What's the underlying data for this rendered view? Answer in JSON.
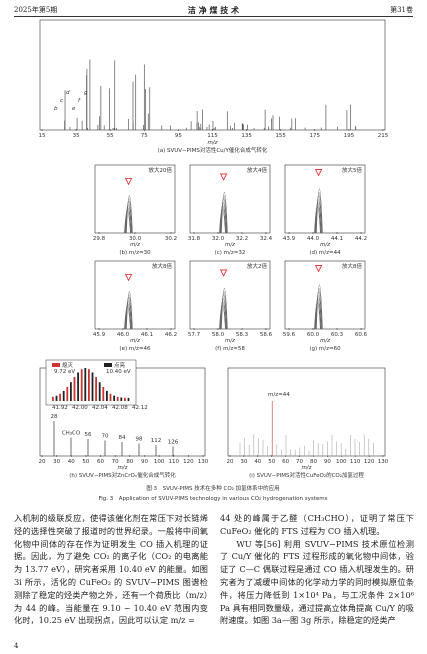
{
  "header": {
    "issue": "2025年第5期",
    "journal": "洁 净 煤 技 术",
    "volume": "第31卷"
  },
  "figure": {
    "panel_a": {
      "xticks": [
        "15",
        "35",
        "55",
        "75",
        "95",
        "115",
        "135",
        "155",
        "175",
        "195",
        "215"
      ],
      "xlabel": "m/z",
      "peak_labels": [
        "b",
        "c",
        "d",
        "e",
        "f",
        "g"
      ],
      "caption": "(a) SVUV−PIMS对活性Cu/Y催化合成气转化"
    },
    "panels": [
      {
        "zoom": "放大20倍",
        "xticks": [
          "29.8",
          "30.0",
          "30.2"
        ],
        "xlabel": "m/z",
        "caption": "(b) m/z=30"
      },
      {
        "zoom": "放大4倍",
        "xticks": [
          "31.8",
          "32.0",
          "32.2",
          "32.4"
        ],
        "xlabel": "m/z",
        "caption": "(c) m/z=32"
      },
      {
        "zoom": "放大5倍",
        "xticks": [
          "43.9",
          "44.0",
          "44.1",
          "44.2"
        ],
        "xlabel": "m/z",
        "caption": "(d) m/z=44"
      },
      {
        "zoom": "放大8倍",
        "xticks": [
          "45.9",
          "46.0",
          "46.1",
          "46.2"
        ],
        "xlabel": "m/z",
        "caption": "(e) m/z=46"
      },
      {
        "zoom": "放大2倍",
        "xticks": [
          "57.7",
          "58.0",
          "58.3",
          "58.6"
        ],
        "xlabel": "m/z",
        "caption": "(f) m/z=58"
      },
      {
        "zoom": "放大8倍",
        "xticks": [
          "59.6",
          "60.0",
          "60.3",
          "60.6"
        ],
        "xlabel": "m/z",
        "caption": "(g) m/z=60"
      }
    ],
    "panel_h": {
      "legend": [
        "熄灭",
        "点亮"
      ],
      "energies": [
        "9.72 eV",
        "10.40 eV"
      ],
      "peaks": [
        "28",
        "CH₃CO",
        "56",
        "70",
        "84",
        "98",
        "112",
        "126"
      ],
      "inset_xticks": [
        "41.92",
        "42.00",
        "42.04",
        "42.08",
        "42.12"
      ],
      "xticks": [
        "20",
        "30",
        "40",
        "50",
        "60",
        "70",
        "80",
        "90",
        "100",
        "110",
        "120",
        "130"
      ],
      "xlabel": "m/z",
      "caption": "(h) SVUV−PIMS对ZnCrOₓ催化合成气转化"
    },
    "panel_i": {
      "annotation": "m/z=44",
      "xticks": [
        "20",
        "30",
        "40",
        "50",
        "60",
        "70",
        "80",
        "90",
        "100",
        "110",
        "120",
        "130"
      ],
      "xlabel": "m/z",
      "caption": "(i) SVUV−PIMS对活性CuFeO₂的CO₂加氢过程"
    },
    "caption_cn": "图 3　SVUV-PIMS 技术在多种 CO₂ 加氢体系中的应用",
    "caption_en": "Fig. 3　Application of SVUV-PIMS technology in various CO₂ hydrogenation systems"
  },
  "body": {
    "left": "入机制的级联反应，使得该催化剂在常压下对长链烯烃的选择性突破了报道时的世界纪录。一般将中间氧化物中间体的存在作为证明发生 CO 插入机理的证据。因此，为了避免 CO₂ 的离子化（CO₂ 的电离能为 13.77 eV），研究者采用 10.40 eV 的能量。如图 3i 所示，活化的 CuFeO₂ 的 SVUV−PIMS 图谱检测除了稳定的烃类产物之外，还有一个荷质比（m/z）为 44 的峰。当能量在 9.10 ~ 10.40 eV 范围内变化时，10.25 eV 出现拐点，因此可以认定 m/z =",
    "right": [
      "44 处的峰属于乙醛（CH₃CHO），证明了常压下 CuFeO₂ 催化的 FTS 过程为 CO 插入机理。",
      "WU 等[56] 利用 SVUV−PIMS 技术原位检测了 Cu/Y 催化的 FTS 过程形成的氧化物中间体，验证了 C—C 偶联过程是通过 CO 插入机理发生的。研究者为了减缓中间体的化学动力学的同时模拟原位条件，将压力降低到 1×10⁴ Pa，与工况条件 2×10⁶ Pa 具有相同数量级，通过提高立体角提高 Cu/Y 的吸附速度。如图 3a—图 3g 所示，除稳定的烃类产"
    ]
  },
  "page_number": "4"
}
